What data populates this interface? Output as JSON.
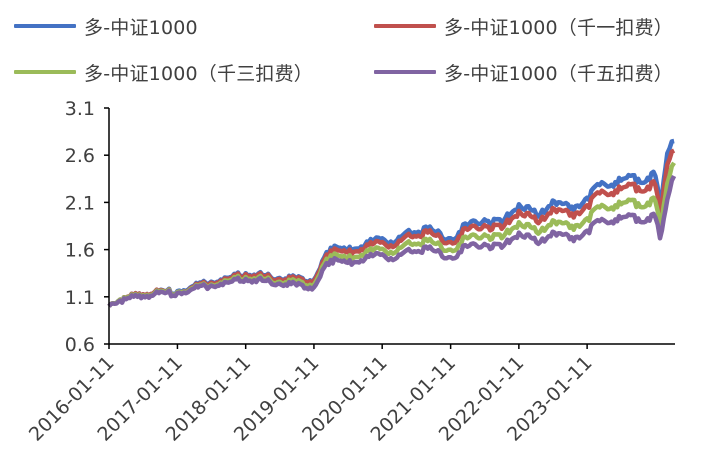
{
  "chart_data": {
    "type": "line",
    "title": "",
    "xlabel": "",
    "ylabel": "",
    "ylim": [
      0.6,
      3.1
    ],
    "yticks": [
      "0.6",
      "1.1",
      "1.6",
      "2.1",
      "2.6",
      "3.1"
    ],
    "xticks": [
      "2016-01-11",
      "2017-01-11",
      "2018-01-11",
      "2019-01-11",
      "2020-01-11",
      "2021-01-11",
      "2022-01-11",
      "2023-01-11"
    ],
    "legend_placement": "top",
    "grid": false,
    "x": [
      "2016-01-11",
      "2016-03-11",
      "2016-06-11",
      "2016-09-11",
      "2017-01-11",
      "2017-04-11",
      "2017-07-11",
      "2017-10-11",
      "2018-01-11",
      "2018-04-11",
      "2018-07-11",
      "2018-10-11",
      "2019-01-11",
      "2019-02-25",
      "2019-04-11",
      "2019-07-11",
      "2019-10-11",
      "2020-01-11",
      "2020-03-20",
      "2020-06-11",
      "2020-09-11",
      "2021-01-11",
      "2021-04-11",
      "2021-07-11",
      "2021-10-11",
      "2022-01-11",
      "2022-04-25",
      "2022-07-11",
      "2022-10-11",
      "2023-01-11",
      "2023-04-11",
      "2023-07-11",
      "2023-10-11",
      "2024-01-11",
      "2024-02-05",
      "2024-03-15",
      "2024-04-20"
    ],
    "series": [
      {
        "name": "多-中证1000",
        "color": "#4472C4",
        "values": [
          1.0,
          1.07,
          1.12,
          1.15,
          1.16,
          1.22,
          1.26,
          1.3,
          1.35,
          1.33,
          1.3,
          1.29,
          1.28,
          1.48,
          1.62,
          1.6,
          1.65,
          1.72,
          1.68,
          1.78,
          1.82,
          1.72,
          1.86,
          1.92,
          1.88,
          2.08,
          1.95,
          2.12,
          2.03,
          2.15,
          2.3,
          2.33,
          2.35,
          2.38,
          2.05,
          2.62,
          2.75
        ]
      },
      {
        "name": "多-中证1000（千一扣费）",
        "color": "#C0504D",
        "values": [
          1.0,
          1.07,
          1.12,
          1.15,
          1.15,
          1.21,
          1.25,
          1.29,
          1.34,
          1.32,
          1.29,
          1.28,
          1.27,
          1.46,
          1.59,
          1.57,
          1.62,
          1.68,
          1.64,
          1.74,
          1.78,
          1.68,
          1.81,
          1.86,
          1.82,
          2.01,
          1.88,
          2.04,
          1.96,
          2.07,
          2.21,
          2.24,
          2.26,
          2.28,
          1.97,
          2.5,
          2.65
        ]
      },
      {
        "name": "多-中证1000（千三扣费）",
        "color": "#9BBB59",
        "values": [
          1.0,
          1.07,
          1.11,
          1.14,
          1.15,
          1.2,
          1.23,
          1.27,
          1.31,
          1.29,
          1.26,
          1.25,
          1.23,
          1.42,
          1.54,
          1.51,
          1.56,
          1.61,
          1.57,
          1.66,
          1.69,
          1.6,
          1.72,
          1.76,
          1.72,
          1.89,
          1.77,
          1.91,
          1.83,
          1.93,
          2.06,
          2.08,
          2.09,
          2.11,
          1.83,
          2.3,
          2.52
        ]
      },
      {
        "name": "多-中证1000（千五扣费）",
        "color": "#8064A2",
        "values": [
          1.0,
          1.06,
          1.1,
          1.13,
          1.14,
          1.19,
          1.22,
          1.25,
          1.29,
          1.27,
          1.24,
          1.22,
          1.2,
          1.38,
          1.49,
          1.46,
          1.5,
          1.55,
          1.5,
          1.58,
          1.61,
          1.52,
          1.63,
          1.66,
          1.62,
          1.78,
          1.66,
          1.79,
          1.71,
          1.8,
          1.91,
          1.93,
          1.93,
          1.94,
          1.72,
          2.13,
          2.38
        ]
      }
    ]
  }
}
